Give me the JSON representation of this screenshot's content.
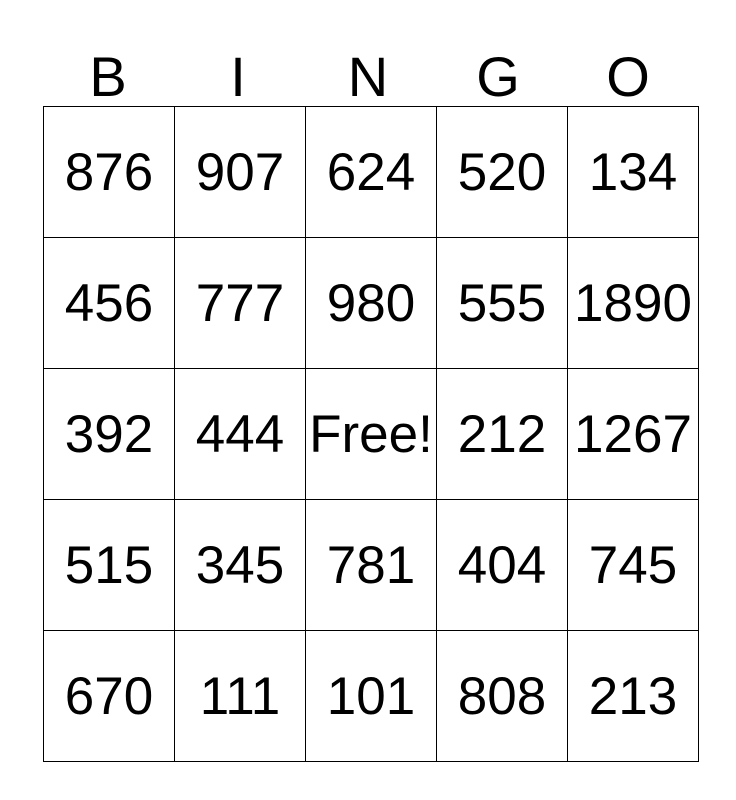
{
  "card": {
    "title": "BINGO",
    "header": {
      "letters": [
        "B",
        "I",
        "N",
        "G",
        "O"
      ]
    },
    "grid": {
      "rows": [
        [
          "876",
          "907",
          "624",
          "520",
          "134"
        ],
        [
          "456",
          "777",
          "980",
          "555",
          "1890"
        ],
        [
          "392",
          "444",
          "Free!",
          "212",
          "1267"
        ],
        [
          "515",
          "345",
          "781",
          "404",
          "745"
        ],
        [
          "670",
          "111",
          "101",
          "808",
          "213"
        ]
      ],
      "free_cell": {
        "row": 2,
        "col": 2,
        "label": "Free!"
      }
    },
    "colors": {
      "background": "#ffffff",
      "text": "#000000",
      "border": "#000000"
    }
  }
}
